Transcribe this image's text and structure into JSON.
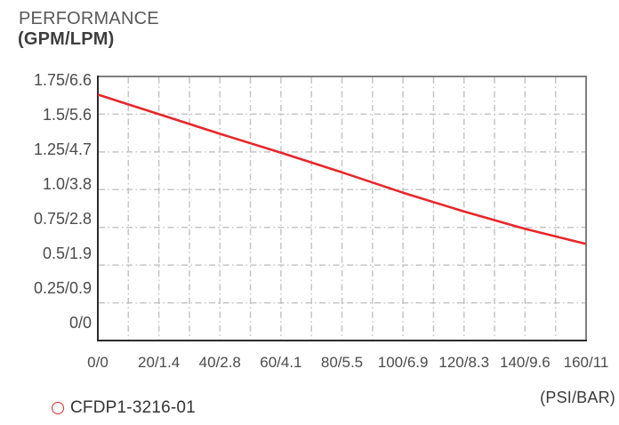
{
  "chart_data": {
    "type": "line",
    "title": "PERFORMANCE",
    "y_axis_unit": "(GPM/LPM)",
    "x_axis_unit": "(PSI/BAR)",
    "x_tick_labels": [
      "0/0",
      "20/1.4",
      "40/2.8",
      "60/4.1",
      "80/5.5",
      "100/6.9",
      "120/8.3",
      "140/9.6",
      "160/11"
    ],
    "y_tick_labels": [
      "1.75/6.6",
      "1.5/5.6",
      "1.25/4.7",
      "1.0/3.8",
      "0.75/2.8",
      "0.5/1.9",
      "0.25/0.9",
      "0/0"
    ],
    "x_range": [
      0,
      160
    ],
    "y_range": [
      0,
      1.75
    ],
    "x_label_step": 20,
    "x_grid_step": 10,
    "y_grid_step": 0.25,
    "grid_style": "dash-dot",
    "grid_on": true,
    "legend_position": "bottom-left",
    "series": [
      {
        "name": "CFDP1-3216-01",
        "marker": "circle-outline",
        "color": "#e8262a",
        "points": [
          [
            0,
            1.63
          ],
          [
            20,
            1.5
          ],
          [
            40,
            1.37
          ],
          [
            60,
            1.245
          ],
          [
            80,
            1.115
          ],
          [
            100,
            0.98
          ],
          [
            120,
            0.855
          ],
          [
            140,
            0.74
          ],
          [
            160,
            0.64
          ]
        ]
      }
    ],
    "colors": {
      "line_red": "#e8262a",
      "grid": "#c4c4c4",
      "axis_dark": "#2b2b2b",
      "frame_gray": "#7f7f7f",
      "tick_text": "#4b4b4b",
      "title_text": "#585858",
      "legend_text": "#333333",
      "background": "#ffffff"
    }
  }
}
